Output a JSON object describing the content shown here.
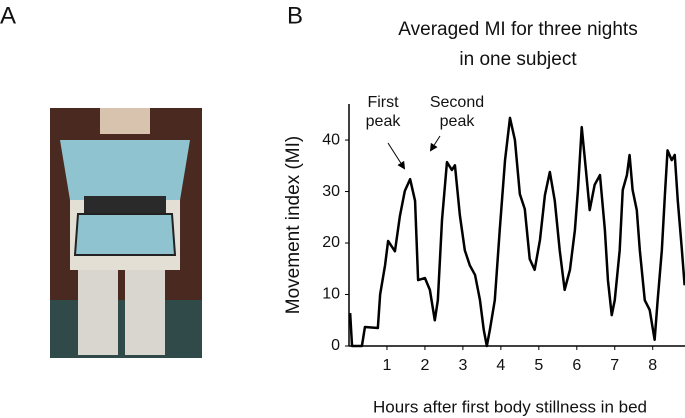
{
  "panels": {
    "a": "A",
    "b": "B"
  },
  "chart_data": {
    "type": "line",
    "title": [
      "Averaged MI for three nights",
      "in one subject"
    ],
    "x_label": "Hours after first body stillness in bed",
    "y_label": "Movement index (MI)",
    "annotations": [
      [
        "First",
        "peak"
      ],
      [
        "Second",
        "peak"
      ]
    ],
    "color": "#000000",
    "x": [
      0.03,
      0.08,
      0.34,
      0.42,
      0.76,
      0.82,
      0.95,
      1.03,
      1.21,
      1.34,
      1.47,
      1.61,
      1.74,
      1.82,
      2.0,
      2.13,
      2.26,
      2.34,
      2.45,
      2.58,
      2.71,
      2.79,
      2.92,
      3.05,
      3.18,
      3.32,
      3.45,
      3.55,
      3.63,
      3.71,
      3.84,
      3.97,
      4.11,
      4.24,
      4.37,
      4.5,
      4.63,
      4.76,
      4.89,
      5.03,
      5.16,
      5.29,
      5.42,
      5.55,
      5.68,
      5.82,
      5.95,
      6.03,
      6.13,
      6.24,
      6.34,
      6.47,
      6.61,
      6.74,
      6.82,
      6.92,
      7.0,
      7.13,
      7.21,
      7.32,
      7.39,
      7.47,
      7.58,
      7.66,
      7.79,
      7.92,
      8.05,
      8.13,
      8.24,
      8.32,
      8.39,
      8.5,
      8.58,
      8.66,
      8.76,
      8.84
    ],
    "values": [
      6.4,
      0,
      0,
      3.7,
      3.5,
      10,
      15.7,
      20.4,
      18.4,
      25.2,
      30.1,
      32.4,
      28.2,
      12.8,
      13.2,
      10.9,
      5,
      8.9,
      24.5,
      35.7,
      34.2,
      35.1,
      25.4,
      18.6,
      15.7,
      13.8,
      8.9,
      3.1,
      0,
      3.1,
      8.9,
      22.5,
      36.1,
      44.3,
      40.0,
      29.5,
      26.6,
      16.9,
      14.8,
      20.6,
      29.3,
      33.8,
      28.2,
      18.6,
      10.9,
      14.8,
      22.5,
      30.3,
      42.5,
      34.2,
      26.4,
      31.3,
      33.2,
      22.5,
      12.8,
      6,
      8.9,
      18.6,
      30.3,
      33.2,
      37.1,
      30.3,
      26.4,
      18.6,
      8.9,
      7,
      1.2,
      8.9,
      18.6,
      29.3,
      38,
      36.1,
      37.1,
      28.2,
      19.4,
      11.8
    ],
    "xlim": [
      0,
      8.85
    ],
    "xticks": [
      1,
      2,
      3,
      4,
      5,
      6,
      7,
      8
    ],
    "ylim": [
      0,
      47
    ],
    "yticks": [
      0,
      10,
      20,
      30,
      40
    ]
  }
}
